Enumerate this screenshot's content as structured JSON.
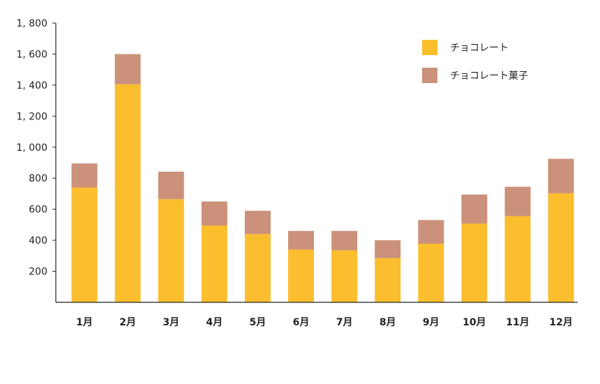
{
  "chart_data": {
    "type": "bar",
    "stacked": true,
    "categories": [
      "1月",
      "2月",
      "3月",
      "4月",
      "5月",
      "6月",
      "7月",
      "8月",
      "9月",
      "10月",
      "11月",
      "12月"
    ],
    "series": [
      {
        "name": "チョコレート",
        "color": "#FBBE2E",
        "values": [
          740,
          1405,
          665,
          495,
          440,
          340,
          335,
          285,
          378,
          508,
          555,
          703
        ]
      },
      {
        "name": "チョコレート菓子",
        "color": "#CB917A",
        "values": [
          155,
          195,
          177,
          155,
          150,
          120,
          125,
          115,
          152,
          187,
          190,
          222
        ]
      }
    ],
    "ylim": [
      0,
      1800
    ],
    "yticks": [
      200,
      400,
      600,
      800,
      1000,
      1200,
      1400,
      1600,
      1800
    ],
    "ytick_labels": [
      "200",
      "400",
      "600",
      "800",
      "1, 000",
      "1, 200",
      "1, 400",
      "1, 600",
      "1, 800"
    ],
    "grid": false,
    "legend_position": "top-right"
  }
}
